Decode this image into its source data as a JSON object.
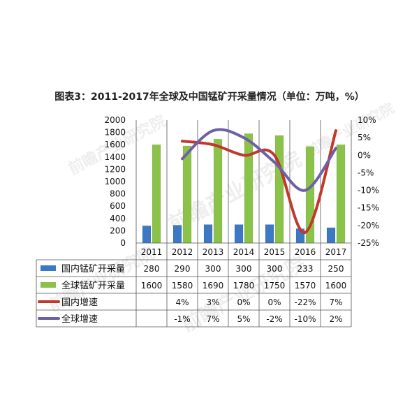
{
  "title": "图表3：2011-2017年全球及中国锰矿开采量情况（单位：万吨，%）",
  "watermark": "前瞻产业研究院",
  "chart_data": {
    "type": "bar",
    "categories": [
      "2011",
      "2012",
      "2013",
      "2014",
      "2015",
      "2016",
      "2017"
    ],
    "y_left_ticks": [
      "0",
      "200",
      "400",
      "600",
      "800",
      "1000",
      "1200",
      "1400",
      "1600",
      "1800",
      "2000"
    ],
    "y_right_ticks": [
      "10%",
      "5%",
      "0%",
      "-5%",
      "-10%",
      "-15%",
      "-20%",
      "-25%"
    ],
    "ylim_left": [
      0,
      2000
    ],
    "ylim_right": [
      -25,
      10
    ],
    "series": [
      {
        "name": "国内锰矿开采量",
        "kind": "bar",
        "axis": "left",
        "color": "#3d78c4",
        "values": [
          280,
          290,
          300,
          300,
          300,
          233,
          250
        ],
        "labels": [
          "280",
          "290",
          "300",
          "300",
          "300",
          "233",
          "250"
        ]
      },
      {
        "name": "全球锰矿开采量",
        "kind": "bar",
        "axis": "left",
        "color": "#8bc34a",
        "values": [
          1600,
          1580,
          1690,
          1780,
          1750,
          1570,
          1600
        ],
        "labels": [
          "1600",
          "1580",
          "1690",
          "1780",
          "1750",
          "1570",
          "1600"
        ]
      },
      {
        "name": "国内增速",
        "kind": "line",
        "axis": "right",
        "color": "#c0392b",
        "values": [
          null,
          4,
          3,
          0,
          0,
          -22,
          7
        ],
        "labels": [
          "",
          "4%",
          "3%",
          "0%",
          "0%",
          "-22%",
          "7%"
        ]
      },
      {
        "name": "全球增速",
        "kind": "line",
        "axis": "right",
        "color": "#6f5fa8",
        "values": [
          null,
          -1,
          7,
          5,
          -2,
          -10,
          2
        ],
        "labels": [
          "",
          "-1%",
          "7%",
          "5%",
          "-2%",
          "-10%",
          "2%"
        ]
      }
    ],
    "legend": "data-table"
  }
}
